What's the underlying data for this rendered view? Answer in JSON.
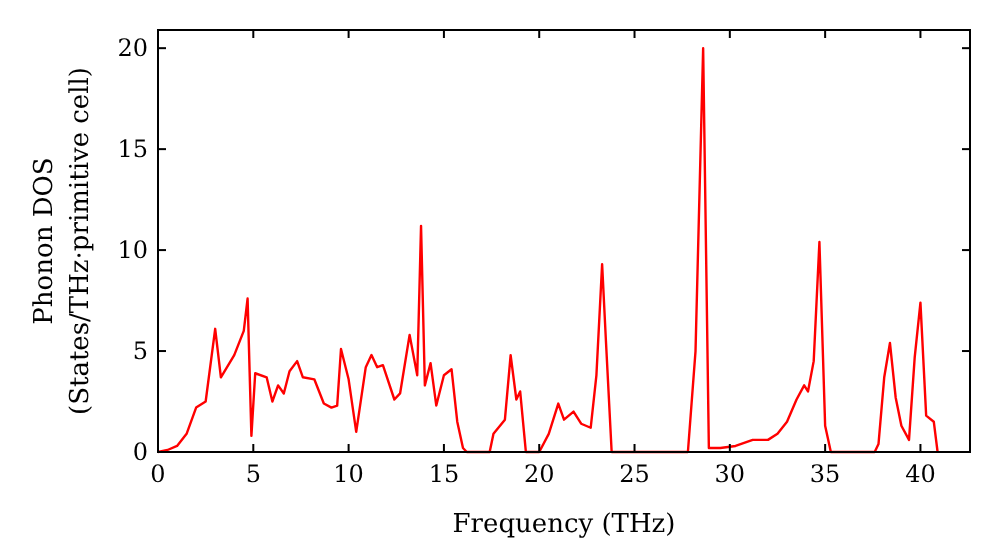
{
  "chart_data": {
    "type": "line",
    "xlabel": "Frequency (THz)",
    "ylabel": "Phonon DOS\n(States/THz·primitive cell)",
    "xlim": [
      0,
      42.6
    ],
    "ylim": [
      0,
      20.9
    ],
    "xticks": [
      0,
      5,
      10,
      15,
      20,
      25,
      30,
      35,
      40
    ],
    "yticks": [
      0,
      5,
      10,
      15,
      20
    ],
    "grid": false,
    "series": [
      {
        "color": "#ff0000",
        "x": [
          0,
          0.5,
          1,
          1.5,
          2,
          2.5,
          3,
          3.3,
          4,
          4.5,
          4.7,
          4.9,
          5.1,
          5.7,
          6,
          6.3,
          6.6,
          6.9,
          7.3,
          7.6,
          8.2,
          8.7,
          9.1,
          9.4,
          9.6,
          10,
          10.4,
          10.9,
          11.2,
          11.5,
          11.8,
          12.4,
          12.7,
          13.2,
          13.6,
          13.8,
          14,
          14.3,
          14.6,
          15,
          15.4,
          15.7,
          16,
          16.2,
          17.4,
          17.6,
          18.2,
          18.5,
          18.8,
          19,
          19.3,
          20,
          20.5,
          21,
          21.3,
          21.8,
          22.2,
          22.7,
          23,
          23.3,
          23.5,
          23.8,
          27.8,
          28.2,
          28.6,
          28.9,
          29.5,
          30.3,
          31.2,
          32,
          32.5,
          33,
          33.5,
          33.9,
          34.1,
          34.4,
          34.7,
          35,
          35.3,
          37.6,
          37.8,
          38.1,
          38.4,
          38.7,
          39,
          39.4,
          39.7,
          40,
          40.3,
          40.7,
          40.9
        ],
        "values": [
          0,
          0.1,
          0.3,
          0.9,
          2.2,
          2.5,
          6.1,
          3.7,
          4.8,
          6,
          7.6,
          0.8,
          3.9,
          3.7,
          2.5,
          3.3,
          2.9,
          4,
          4.5,
          3.7,
          3.6,
          2.4,
          2.2,
          2.3,
          5.1,
          3.6,
          1,
          4.2,
          4.8,
          4.2,
          4.3,
          2.6,
          2.9,
          5.8,
          3.8,
          11.2,
          3.3,
          4.4,
          2.3,
          3.8,
          4.1,
          1.5,
          0.2,
          0,
          0,
          0.9,
          1.6,
          4.8,
          2.6,
          3,
          0,
          0,
          0.9,
          2.4,
          1.6,
          2,
          1.4,
          1.2,
          3.8,
          9.3,
          5.5,
          0,
          0,
          5,
          20,
          0.2,
          0.2,
          0.3,
          0.6,
          0.6,
          0.9,
          1.5,
          2.6,
          3.3,
          3,
          4.5,
          10.4,
          1.3,
          0,
          0,
          0.4,
          3.7,
          5.4,
          2.7,
          1.3,
          0.6,
          4.7,
          7.4,
          1.8,
          1.5,
          0
        ]
      }
    ]
  }
}
